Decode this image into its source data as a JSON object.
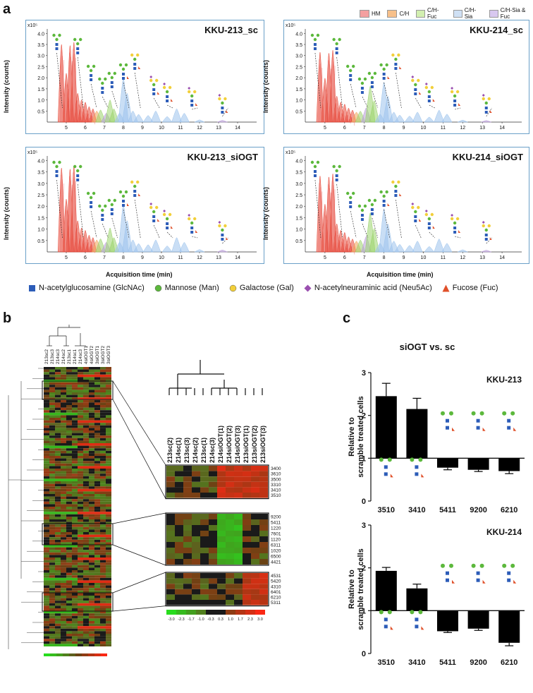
{
  "panels": {
    "a": "a",
    "b": "b",
    "c": "c"
  },
  "legend_top": [
    {
      "label": "HM",
      "color": "#f4a0a0"
    },
    {
      "label": "C/H",
      "color": "#f7c08a"
    },
    {
      "label": "C/H-Fuc",
      "color": "#d2efb0"
    },
    {
      "label": "C/H-Sia",
      "color": "#cfe0f4"
    },
    {
      "label": "C/H-Sia & Fuc",
      "color": "#d8c8ef"
    }
  ],
  "chromatograms": [
    {
      "title": "KKU-213_sc"
    },
    {
      "title": "KKU-214_sc"
    },
    {
      "title": "KKU-213_siOGT"
    },
    {
      "title": "KKU-214_siOGT"
    }
  ],
  "chrom_axis": {
    "exponent": "x10⁵",
    "y_ticks": [
      "4.0",
      "3.5",
      "3.0",
      "2.5",
      "2.0",
      "1.5",
      "1.0",
      "0.5"
    ],
    "x_ticks": [
      "5",
      "6",
      "7",
      "8",
      "9",
      "10",
      "11",
      "12",
      "13",
      "14"
    ],
    "ylabel": "Intensity (counts)",
    "xlabel": "Acquisition time (min)"
  },
  "glycan_legend": [
    {
      "label": "N-acetylglucosamine (GlcNAc)",
      "shape": "square",
      "color": "#2c5cb8"
    },
    {
      "label": "Mannose (Man)",
      "shape": "circle",
      "color": "#5cb83c"
    },
    {
      "label": "Galactose (Gal)",
      "shape": "circle",
      "color": "#f2cf3a"
    },
    {
      "label": "N-acetylneuraminic acid (Neu5Ac)",
      "shape": "diamond",
      "color": "#9a4fb0"
    },
    {
      "label": "Fucose (Fuc)",
      "shape": "triangle",
      "color": "#e0502a"
    }
  ],
  "heatmap": {
    "small_cols": [
      "213sc2",
      "213sc3",
      "214sc3",
      "214sc2",
      "213sc1",
      "214sc1",
      "214sc3",
      "4siOGT1",
      "4siOGT2",
      "3siOGT1",
      "3siOGT2",
      "3siOGT3"
    ],
    "zoom_cols": [
      "213sc(2)",
      "214sc(1)",
      "213sc(3)",
      "214sc(2)",
      "213sc(1)",
      "214sc(3)",
      "214siOGT(1)",
      "214siOGT(2)",
      "214siOGT(3)",
      "213siOGT(1)",
      "213siOGT(2)",
      "213siOGT(3)"
    ],
    "block1_rows": [
      "3400",
      "3610",
      "3500",
      "3310",
      "3410",
      "3510"
    ],
    "block2_rows": [
      "9200",
      "5411",
      "1220",
      "7601",
      "1120",
      "6311",
      "1020",
      "6500",
      "4421"
    ],
    "block3_rows": [
      "4531",
      "5420",
      "4310",
      "6401",
      "6210",
      "5311"
    ],
    "scale_ticks": [
      "-3.0",
      "-2.3",
      "-1.7",
      "-1.0",
      "-0.3",
      "0.3",
      "1.0",
      "1.7",
      "2.3",
      "3.0"
    ]
  },
  "bar_panel": {
    "title": "siOGT vs. sc",
    "ylabel_line1": "Relative to",
    "ylabel_line2": "scramble treated cells",
    "y_ticks": [
      "3",
      "2",
      "1",
      "0"
    ]
  },
  "chart_data": [
    {
      "type": "bar",
      "title": "KKU-213",
      "categories": [
        "3510",
        "3410",
        "5411",
        "9200",
        "6210"
      ],
      "values": [
        2.45,
        2.15,
        0.78,
        0.73,
        0.7
      ],
      "errors": [
        0.3,
        0.25,
        0.05,
        0.04,
        0.06
      ],
      "ylim": [
        0,
        3
      ],
      "baseline": 1
    },
    {
      "type": "bar",
      "title": "KKU-214",
      "categories": [
        "3510",
        "3410",
        "5411",
        "9200",
        "6210"
      ],
      "values": [
        1.93,
        1.52,
        0.52,
        0.58,
        0.25
      ],
      "errors": [
        0.08,
        0.1,
        0.03,
        0.04,
        0.07
      ],
      "ylim": [
        0,
        3
      ],
      "baseline": 1
    }
  ]
}
